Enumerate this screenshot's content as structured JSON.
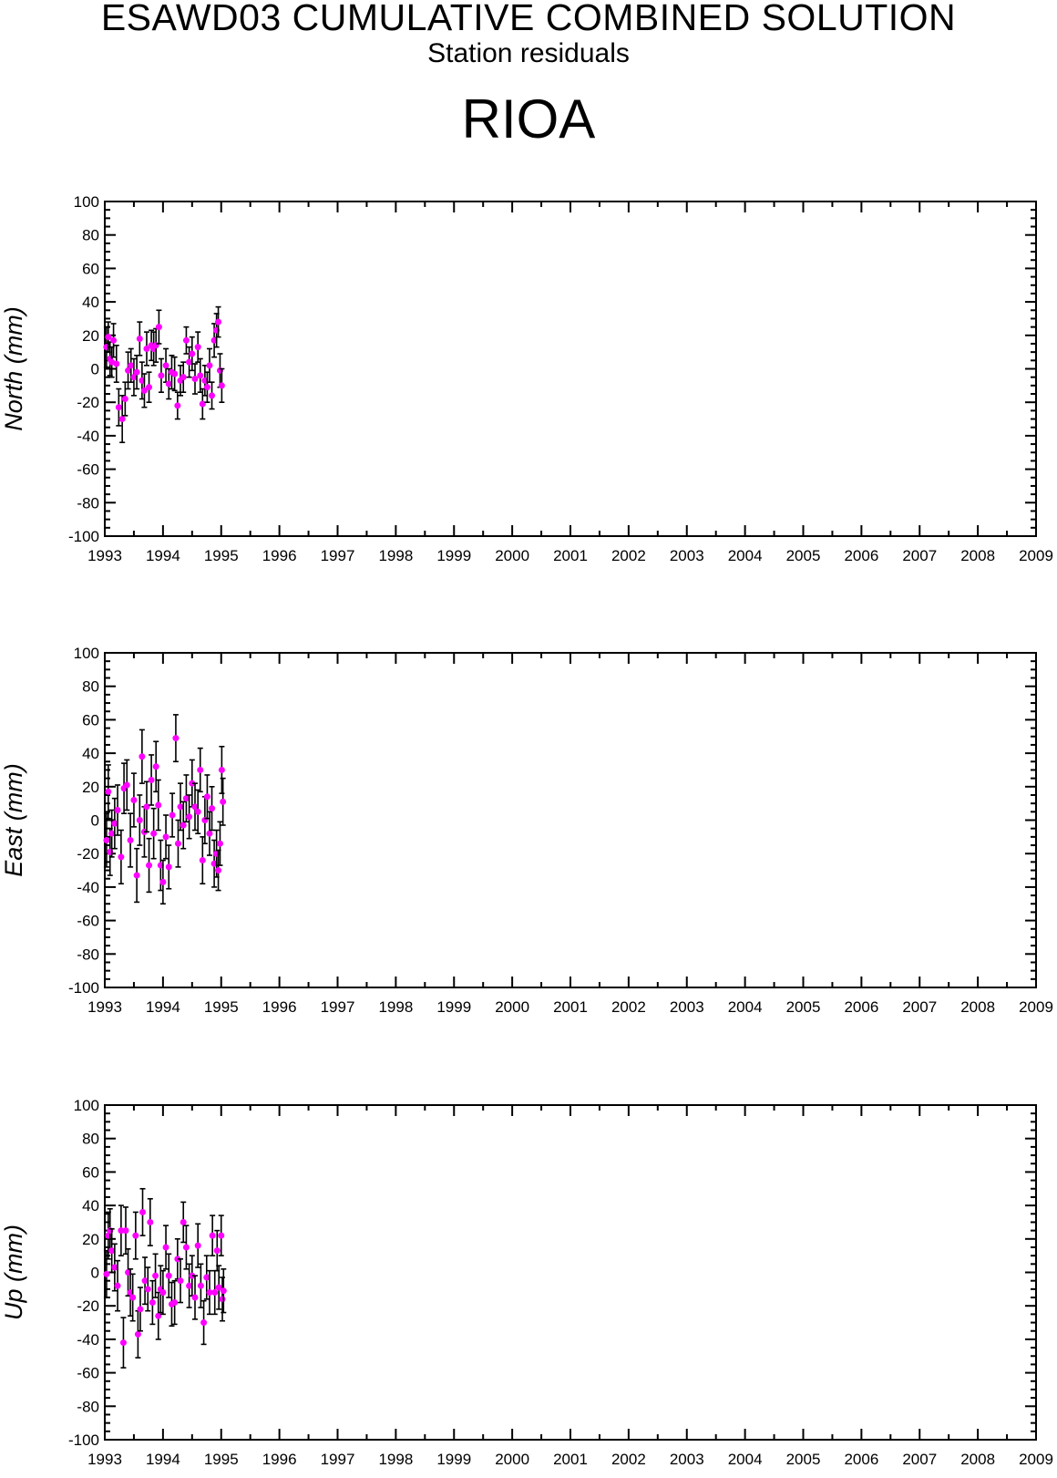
{
  "header": {
    "title": "ESAWD03 CUMULATIVE COMBINED SOLUTION",
    "subtitle": "Station residuals",
    "station": "RIOA"
  },
  "colors": {
    "points": "#ff00ff",
    "error_bars": "#000000",
    "axes": "#000000"
  },
  "chart_data": [
    {
      "type": "scatter",
      "ylabel": "North (mm)",
      "xlim": [
        1993,
        2009
      ],
      "ylim": [
        -100,
        100
      ],
      "x_ticks": [
        "1993",
        "1994",
        "1995",
        "1996",
        "1997",
        "1998",
        "1999",
        "2000",
        "2001",
        "2002",
        "2003",
        "2004",
        "2005",
        "2006",
        "2007",
        "2008",
        "2009"
      ],
      "y_ticks": [
        "100",
        "80",
        "60",
        "40",
        "20",
        "0",
        "-20",
        "-40",
        "-60",
        "-80",
        "-100"
      ],
      "grid": false,
      "points": [
        {
          "x": 1993.03,
          "y": 13,
          "err": 12
        },
        {
          "x": 1993.06,
          "y": 19,
          "err": 9
        },
        {
          "x": 1993.09,
          "y": 6,
          "err": 10
        },
        {
          "x": 1993.12,
          "y": 4,
          "err": 9
        },
        {
          "x": 1993.15,
          "y": 17,
          "err": 10
        },
        {
          "x": 1993.2,
          "y": 3,
          "err": 11
        },
        {
          "x": 1993.24,
          "y": -23,
          "err": 11
        },
        {
          "x": 1993.3,
          "y": -30,
          "err": 14
        },
        {
          "x": 1993.35,
          "y": -18,
          "err": 10
        },
        {
          "x": 1993.4,
          "y": -1,
          "err": 11
        },
        {
          "x": 1993.45,
          "y": 2,
          "err": 10
        },
        {
          "x": 1993.5,
          "y": -5,
          "err": 11
        },
        {
          "x": 1993.55,
          "y": -2,
          "err": 10
        },
        {
          "x": 1993.6,
          "y": 18,
          "err": 10
        },
        {
          "x": 1993.64,
          "y": -7,
          "err": 11
        },
        {
          "x": 1993.68,
          "y": -13,
          "err": 10
        },
        {
          "x": 1993.72,
          "y": 12,
          "err": 10
        },
        {
          "x": 1993.76,
          "y": -11,
          "err": 9
        },
        {
          "x": 1993.8,
          "y": 14,
          "err": 9
        },
        {
          "x": 1993.84,
          "y": 12,
          "err": 10
        },
        {
          "x": 1993.88,
          "y": 14,
          "err": 10
        },
        {
          "x": 1993.93,
          "y": 25,
          "err": 10
        },
        {
          "x": 1993.97,
          "y": -4,
          "err": 10
        },
        {
          "x": 1994.05,
          "y": 2,
          "err": 10
        },
        {
          "x": 1994.1,
          "y": -9,
          "err": 9
        },
        {
          "x": 1994.15,
          "y": -2,
          "err": 10
        },
        {
          "x": 1994.2,
          "y": -3,
          "err": 10
        },
        {
          "x": 1994.25,
          "y": -22,
          "err": 8
        },
        {
          "x": 1994.3,
          "y": -7,
          "err": 9
        },
        {
          "x": 1994.35,
          "y": -5,
          "err": 9
        },
        {
          "x": 1994.4,
          "y": 17,
          "err": 8
        },
        {
          "x": 1994.45,
          "y": 4,
          "err": 9
        },
        {
          "x": 1994.5,
          "y": 9,
          "err": 10
        },
        {
          "x": 1994.55,
          "y": -6,
          "err": 9
        },
        {
          "x": 1994.6,
          "y": 13,
          "err": 9
        },
        {
          "x": 1994.64,
          "y": -4,
          "err": 10
        },
        {
          "x": 1994.68,
          "y": -21,
          "err": 9
        },
        {
          "x": 1994.72,
          "y": -7,
          "err": 9
        },
        {
          "x": 1994.76,
          "y": -11,
          "err": 9
        },
        {
          "x": 1994.8,
          "y": 2,
          "err": 10
        },
        {
          "x": 1994.84,
          "y": -16,
          "err": 8
        },
        {
          "x": 1994.88,
          "y": 17,
          "err": 10
        },
        {
          "x": 1994.92,
          "y": 23,
          "err": 10
        },
        {
          "x": 1994.95,
          "y": 28,
          "err": 9
        },
        {
          "x": 1994.98,
          "y": -1,
          "err": 10
        },
        {
          "x": 1995.01,
          "y": -10,
          "err": 10
        }
      ]
    },
    {
      "type": "scatter",
      "ylabel": "East (mm)",
      "xlim": [
        1993,
        2009
      ],
      "ylim": [
        -100,
        100
      ],
      "x_ticks": [
        "1993",
        "1994",
        "1995",
        "1996",
        "1997",
        "1998",
        "1999",
        "2000",
        "2001",
        "2002",
        "2003",
        "2004",
        "2005",
        "2006",
        "2007",
        "2008",
        "2009"
      ],
      "y_ticks": [
        "100",
        "80",
        "60",
        "40",
        "20",
        "0",
        "-20",
        "-40",
        "-60",
        "-80",
        "-100"
      ],
      "grid": false,
      "points": [
        {
          "x": 1993.03,
          "y": -12,
          "err": 16
        },
        {
          "x": 1993.06,
          "y": 17,
          "err": 16
        },
        {
          "x": 1993.09,
          "y": -19,
          "err": 14
        },
        {
          "x": 1993.12,
          "y": -8,
          "err": 14
        },
        {
          "x": 1993.17,
          "y": -2,
          "err": 15
        },
        {
          "x": 1993.22,
          "y": 6,
          "err": 15
        },
        {
          "x": 1993.28,
          "y": -22,
          "err": 16
        },
        {
          "x": 1993.33,
          "y": 19,
          "err": 15
        },
        {
          "x": 1993.38,
          "y": 21,
          "err": 15
        },
        {
          "x": 1993.44,
          "y": -12,
          "err": 16
        },
        {
          "x": 1993.5,
          "y": 12,
          "err": 16
        },
        {
          "x": 1993.55,
          "y": -33,
          "err": 16
        },
        {
          "x": 1993.6,
          "y": 0,
          "err": 15
        },
        {
          "x": 1993.64,
          "y": 38,
          "err": 16
        },
        {
          "x": 1993.68,
          "y": -7,
          "err": 15
        },
        {
          "x": 1993.72,
          "y": 8,
          "err": 15
        },
        {
          "x": 1993.76,
          "y": -27,
          "err": 16
        },
        {
          "x": 1993.8,
          "y": 24,
          "err": 15
        },
        {
          "x": 1993.84,
          "y": -8,
          "err": 15
        },
        {
          "x": 1993.88,
          "y": 32,
          "err": 15
        },
        {
          "x": 1993.92,
          "y": 9,
          "err": 15
        },
        {
          "x": 1993.96,
          "y": -27,
          "err": 15
        },
        {
          "x": 1994.0,
          "y": -37,
          "err": 13
        },
        {
          "x": 1994.05,
          "y": -10,
          "err": 13
        },
        {
          "x": 1994.1,
          "y": -28,
          "err": 13
        },
        {
          "x": 1994.16,
          "y": 3,
          "err": 13
        },
        {
          "x": 1994.22,
          "y": 49,
          "err": 14
        },
        {
          "x": 1994.26,
          "y": -14,
          "err": 14
        },
        {
          "x": 1994.3,
          "y": 8,
          "err": 14
        },
        {
          "x": 1994.35,
          "y": -3,
          "err": 14
        },
        {
          "x": 1994.4,
          "y": 13,
          "err": 14
        },
        {
          "x": 1994.45,
          "y": 2,
          "err": 13
        },
        {
          "x": 1994.5,
          "y": 22,
          "err": 14
        },
        {
          "x": 1994.55,
          "y": 8,
          "err": 14
        },
        {
          "x": 1994.6,
          "y": 5,
          "err": 13
        },
        {
          "x": 1994.64,
          "y": 30,
          "err": 13
        },
        {
          "x": 1994.68,
          "y": -24,
          "err": 14
        },
        {
          "x": 1994.72,
          "y": 0,
          "err": 14
        },
        {
          "x": 1994.76,
          "y": 14,
          "err": 13
        },
        {
          "x": 1994.8,
          "y": -8,
          "err": 13
        },
        {
          "x": 1994.84,
          "y": 7,
          "err": 13
        },
        {
          "x": 1994.88,
          "y": -26,
          "err": 14
        },
        {
          "x": 1994.92,
          "y": -20,
          "err": 14
        },
        {
          "x": 1994.95,
          "y": -30,
          "err": 12
        },
        {
          "x": 1994.98,
          "y": -14,
          "err": 13
        },
        {
          "x": 1995.01,
          "y": 30,
          "err": 14
        },
        {
          "x": 1995.03,
          "y": 11,
          "err": 14
        }
      ]
    },
    {
      "type": "scatter",
      "ylabel": "Up (mm)",
      "xlim": [
        1993,
        2009
      ],
      "ylim": [
        -100,
        100
      ],
      "x_ticks": [
        "1993",
        "1994",
        "1995",
        "1996",
        "1997",
        "1998",
        "1999",
        "2000",
        "2001",
        "2002",
        "2003",
        "2004",
        "2005",
        "2006",
        "2007",
        "2008",
        "2009"
      ],
      "y_ticks": [
        "100",
        "80",
        "60",
        "40",
        "20",
        "0",
        "-20",
        "-40",
        "-60",
        "-80",
        "-100"
      ],
      "grid": false,
      "points": [
        {
          "x": 1993.03,
          "y": -1,
          "err": 14
        },
        {
          "x": 1993.06,
          "y": 22,
          "err": 14
        },
        {
          "x": 1993.09,
          "y": 25,
          "err": 13
        },
        {
          "x": 1993.12,
          "y": 13,
          "err": 13
        },
        {
          "x": 1993.17,
          "y": 3,
          "err": 14
        },
        {
          "x": 1993.22,
          "y": -8,
          "err": 15
        },
        {
          "x": 1993.28,
          "y": 25,
          "err": 15
        },
        {
          "x": 1993.32,
          "y": -42,
          "err": 15
        },
        {
          "x": 1993.36,
          "y": 25,
          "err": 14
        },
        {
          "x": 1993.4,
          "y": 0,
          "err": 14
        },
        {
          "x": 1993.44,
          "y": -12,
          "err": 14
        },
        {
          "x": 1993.48,
          "y": -15,
          "err": 14
        },
        {
          "x": 1993.53,
          "y": 22,
          "err": 14
        },
        {
          "x": 1993.57,
          "y": -37,
          "err": 14
        },
        {
          "x": 1993.61,
          "y": -22,
          "err": 13
        },
        {
          "x": 1993.65,
          "y": 36,
          "err": 14
        },
        {
          "x": 1993.69,
          "y": -5,
          "err": 14
        },
        {
          "x": 1993.74,
          "y": -10,
          "err": 13
        },
        {
          "x": 1993.78,
          "y": 30,
          "err": 14
        },
        {
          "x": 1993.82,
          "y": -18,
          "err": 13
        },
        {
          "x": 1993.87,
          "y": -2,
          "err": 13
        },
        {
          "x": 1993.92,
          "y": -26,
          "err": 14
        },
        {
          "x": 1993.96,
          "y": -10,
          "err": 14
        },
        {
          "x": 1994.0,
          "y": -12,
          "err": 13
        },
        {
          "x": 1994.05,
          "y": 15,
          "err": 13
        },
        {
          "x": 1994.1,
          "y": -2,
          "err": 13
        },
        {
          "x": 1994.15,
          "y": -19,
          "err": 13
        },
        {
          "x": 1994.2,
          "y": -18,
          "err": 13
        },
        {
          "x": 1994.25,
          "y": 8,
          "err": 12
        },
        {
          "x": 1994.3,
          "y": -5,
          "err": 13
        },
        {
          "x": 1994.35,
          "y": 30,
          "err": 12
        },
        {
          "x": 1994.4,
          "y": 15,
          "err": 13
        },
        {
          "x": 1994.45,
          "y": -8,
          "err": 13
        },
        {
          "x": 1994.5,
          "y": -2,
          "err": 12
        },
        {
          "x": 1994.55,
          "y": -15,
          "err": 13
        },
        {
          "x": 1994.6,
          "y": 16,
          "err": 13
        },
        {
          "x": 1994.65,
          "y": -8,
          "err": 13
        },
        {
          "x": 1994.7,
          "y": -30,
          "err": 13
        },
        {
          "x": 1994.75,
          "y": -3,
          "err": 13
        },
        {
          "x": 1994.8,
          "y": -12,
          "err": 13
        },
        {
          "x": 1994.85,
          "y": 22,
          "err": 12
        },
        {
          "x": 1994.89,
          "y": -12,
          "err": 13
        },
        {
          "x": 1994.93,
          "y": 13,
          "err": 12
        },
        {
          "x": 1994.96,
          "y": -9,
          "err": 13
        },
        {
          "x": 1995.0,
          "y": 22,
          "err": 12
        },
        {
          "x": 1995.02,
          "y": -16,
          "err": 13
        },
        {
          "x": 1995.04,
          "y": -11,
          "err": 13
        }
      ]
    }
  ]
}
